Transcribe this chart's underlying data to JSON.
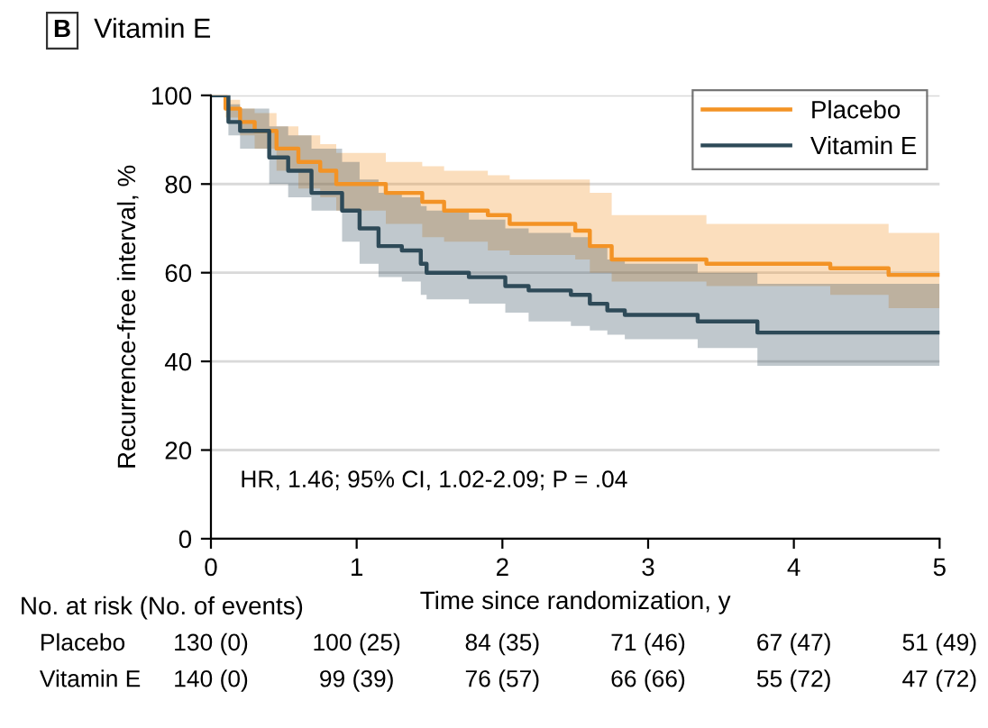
{
  "chart_data": {
    "type": "step",
    "title": "Vitamin E",
    "xlabel": "Time since randomization, y",
    "ylabel": "Recurrence-free interval, %",
    "xlim": [
      0,
      5
    ],
    "ylim": [
      0,
      100
    ],
    "xticks": [
      0,
      1,
      2,
      3,
      4,
      5
    ],
    "yticks": [
      0,
      20,
      40,
      60,
      80,
      100
    ],
    "grid": "y",
    "legend": "top right",
    "series": [
      {
        "name": "Placebo",
        "color": "#f39325",
        "x": [
          0,
          0.1,
          0.2,
          0.3,
          0.45,
          0.6,
          0.75,
          0.86,
          1.2,
          1.45,
          1.6,
          1.9,
          2.05,
          2.5,
          2.6,
          2.75,
          3.4,
          4.25,
          4.65,
          5
        ],
        "values": [
          100,
          97,
          94,
          92,
          88,
          85,
          83,
          80,
          78,
          76,
          74,
          73,
          71,
          69.5,
          66,
          63,
          62,
          61,
          59.5,
          59.5
        ],
        "upper": [
          100,
          99,
          97,
          96,
          93,
          91,
          89,
          87,
          85,
          84,
          83,
          82,
          81,
          81,
          78,
          73,
          71,
          71,
          69,
          69
        ],
        "lower": [
          100,
          95,
          91,
          88,
          83,
          79,
          77,
          74,
          71,
          68,
          67,
          65,
          64,
          63,
          60,
          58,
          57,
          55,
          52,
          52
        ]
      },
      {
        "name": "Vitamin E",
        "color": "#2e4a58",
        "x": [
          0,
          0.12,
          0.2,
          0.4,
          0.53,
          0.69,
          0.9,
          1.02,
          1.15,
          1.31,
          1.44,
          1.48,
          1.77,
          2.02,
          2.18,
          2.47,
          2.6,
          2.72,
          2.84,
          3.34,
          3.75,
          5
        ],
        "values": [
          100,
          94,
          92,
          86,
          83,
          78,
          74,
          70,
          66,
          65,
          62,
          60,
          59,
          57,
          56,
          55,
          53,
          51.5,
          50.5,
          49,
          46.5,
          46.5
        ],
        "upper": [
          100,
          98,
          97,
          93,
          91,
          88,
          85,
          81,
          78,
          77,
          75,
          74,
          72,
          70,
          69,
          68,
          66,
          63,
          62,
          60,
          57.5,
          54
        ],
        "lower": [
          100,
          91,
          88,
          80,
          77,
          74,
          67,
          62,
          59,
          58,
          55,
          54,
          53,
          51,
          49,
          48,
          47,
          46,
          45,
          43,
          39,
          39
        ]
      }
    ],
    "annotations": [
      "B",
      "HR, 1.46; 95% CI, 1.02-2.09; P = .04",
      "No. at risk (No. of events)",
      "Placebo",
      "130 (0)",
      "100 (25)",
      "84 (35)",
      "71 (46)",
      "67 (47)",
      "51 (49)",
      "Vitamin E",
      "140 (0)",
      "99 (39)",
      "76 (57)",
      "66 (66)",
      "55 (72)",
      "47 (72)"
    ]
  }
}
